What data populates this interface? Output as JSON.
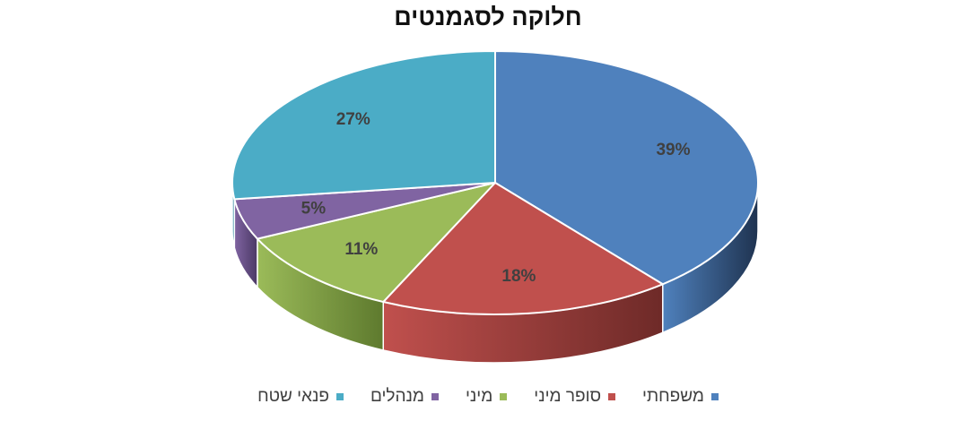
{
  "chart_data": {
    "type": "pie",
    "title": "חלוקה לסגמנטים",
    "slices": [
      {
        "name": "משפחתי",
        "value": 39,
        "label": "39%",
        "color": "#4F81BD",
        "side": "#1F3350"
      },
      {
        "name": "סופר מיני",
        "value": 18,
        "label": "18%",
        "color": "#C0504D",
        "side": "#6E2A28"
      },
      {
        "name": "מיני",
        "value": 11,
        "label": "11%",
        "color": "#9BBB59",
        "side": "#5E7A2E"
      },
      {
        "name": "מנהלים",
        "value": 5,
        "label": "5%",
        "color": "#8064A2",
        "side": "#4B3965"
      },
      {
        "name": "פנאי שטח",
        "value": 27,
        "label": "27%",
        "color": "#4BACC6",
        "side": "#2C7487"
      }
    ],
    "legend_position": "bottom"
  }
}
